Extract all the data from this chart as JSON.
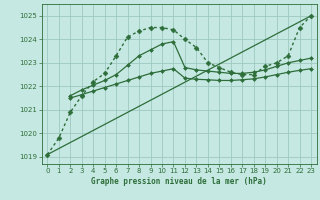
{
  "bg_color": "#c6e8e2",
  "grid_color": "#9dc8c0",
  "line_color": "#2d6e3a",
  "title": "Graphe pression niveau de la mer (hPa)",
  "xlim": [
    -0.5,
    23.5
  ],
  "ylim": [
    1018.7,
    1025.5
  ],
  "yticks": [
    1019,
    1020,
    1021,
    1022,
    1023,
    1024,
    1025
  ],
  "xticks": [
    0,
    1,
    2,
    3,
    4,
    5,
    6,
    7,
    8,
    9,
    10,
    11,
    12,
    13,
    14,
    15,
    16,
    17,
    18,
    19,
    20,
    21,
    22,
    23
  ],
  "series": [
    {
      "x": [
        0,
        1,
        2,
        3,
        4,
        5,
        6,
        7,
        8,
        9,
        10,
        11,
        12,
        13,
        14,
        15,
        16,
        17,
        18,
        19,
        20,
        21,
        22,
        23
      ],
      "y": [
        1019.1,
        1019.8,
        1020.9,
        1021.6,
        1022.2,
        1022.55,
        1023.3,
        1024.1,
        1024.35,
        1024.5,
        1024.5,
        1024.4,
        1024.0,
        1023.65,
        1023.0,
        1022.8,
        1022.6,
        1022.5,
        1022.5,
        1022.85,
        1023.0,
        1023.3,
        1024.5,
        1025.0
      ],
      "style": "dotted",
      "marker": "D",
      "markersize": 2.5,
      "lw": 1.0
    },
    {
      "x": [
        2,
        3,
        4,
        5,
        6,
        7,
        8,
        9,
        10,
        11,
        12,
        13,
        14,
        15,
        16,
        17,
        18,
        19,
        20,
        21,
        22,
        23
      ],
      "y": [
        1021.6,
        1021.85,
        1022.05,
        1022.25,
        1022.5,
        1022.9,
        1023.3,
        1023.55,
        1023.8,
        1023.9,
        1022.8,
        1022.7,
        1022.65,
        1022.6,
        1022.55,
        1022.55,
        1022.6,
        1022.7,
        1022.85,
        1023.0,
        1023.1,
        1023.2
      ],
      "style": "solid",
      "marker": "D",
      "markersize": 2.0,
      "lw": 0.9
    },
    {
      "x": [
        2,
        3,
        4,
        5,
        6,
        7,
        8,
        9,
        10,
        11,
        12,
        13,
        14,
        15,
        16,
        17,
        18,
        19,
        20,
        21,
        22,
        23
      ],
      "y": [
        1021.5,
        1021.65,
        1021.8,
        1021.95,
        1022.1,
        1022.25,
        1022.4,
        1022.55,
        1022.65,
        1022.75,
        1022.35,
        1022.3,
        1022.28,
        1022.25,
        1022.25,
        1022.28,
        1022.32,
        1022.4,
        1022.5,
        1022.6,
        1022.68,
        1022.75
      ],
      "style": "solid",
      "marker": "D",
      "markersize": 2.0,
      "lw": 0.9
    },
    {
      "x": [
        0,
        23
      ],
      "y": [
        1019.1,
        1025.0
      ],
      "style": "solid",
      "marker": null,
      "markersize": 0,
      "lw": 0.9
    }
  ]
}
